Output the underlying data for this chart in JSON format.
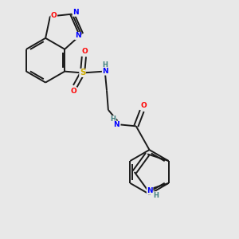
{
  "bg_color": "#e8e8e8",
  "bond_color": "#1a1a1a",
  "atom_colors": {
    "N": "#0000ff",
    "O": "#ff0000",
    "S": "#ccaa00",
    "H": "#408080",
    "C": "#1a1a1a"
  }
}
